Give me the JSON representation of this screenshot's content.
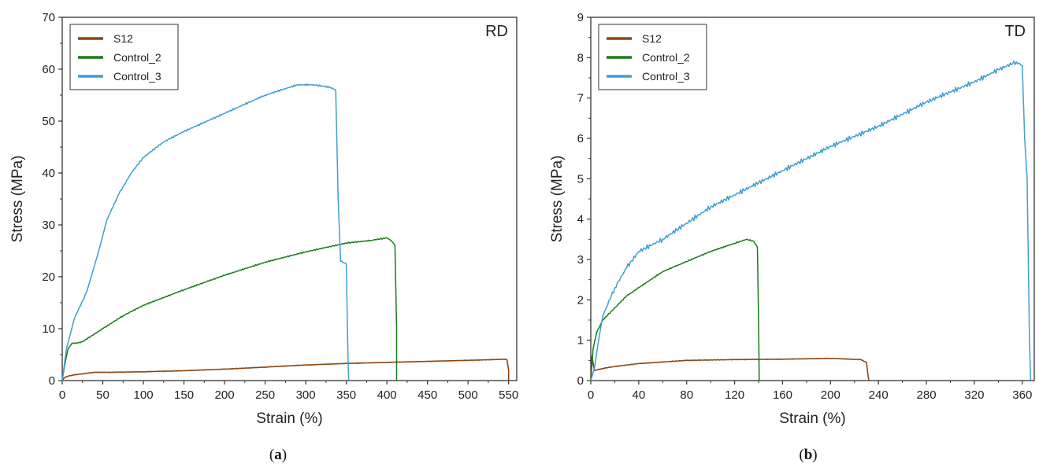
{
  "chart_data": [
    {
      "type": "line",
      "panel": "(a)",
      "caption": {
        "open": "(",
        "letter": "a",
        "close": ")"
      },
      "tag": "RD",
      "xlabel": "Strain (%)",
      "ylabel": "Stress (MPa)",
      "xlim": [
        0,
        560
      ],
      "ylim": [
        0,
        70
      ],
      "xticks": [
        0,
        50,
        100,
        150,
        200,
        250,
        300,
        350,
        400,
        450,
        500,
        550
      ],
      "yticks": [
        0,
        10,
        20,
        30,
        40,
        50,
        60,
        70
      ],
      "legend_position": "top-left",
      "series": [
        {
          "name": "S12",
          "color": "#8B4513",
          "x": [
            0,
            3,
            8,
            15,
            25,
            40,
            60,
            100,
            150,
            200,
            250,
            300,
            350,
            400,
            450,
            500,
            545,
            548,
            550,
            550
          ],
          "y": [
            0,
            0.6,
            0.9,
            1.1,
            1.3,
            1.6,
            1.6,
            1.7,
            1.9,
            2.2,
            2.6,
            3.0,
            3.3,
            3.5,
            3.7,
            3.9,
            4.1,
            4.0,
            2.0,
            0
          ]
        },
        {
          "name": "Control_2",
          "color": "#1a7a1a",
          "x": [
            0,
            3,
            7,
            12,
            18,
            25,
            35,
            50,
            75,
            100,
            150,
            200,
            250,
            300,
            350,
            380,
            400,
            405,
            408,
            410,
            412,
            412
          ],
          "y": [
            0,
            3,
            6,
            7.2,
            7.2,
            7.5,
            8.5,
            10,
            12.5,
            14.5,
            17.5,
            20.3,
            22.8,
            24.8,
            26.5,
            27.0,
            27.5,
            27.0,
            26.5,
            26.0,
            10,
            0
          ]
        },
        {
          "name": "Control_3",
          "color": "#3f9fd0",
          "x": [
            0,
            5,
            15,
            30,
            45,
            55,
            70,
            85,
            100,
            125,
            150,
            200,
            250,
            290,
            310,
            330,
            337,
            340,
            343,
            350,
            352,
            353
          ],
          "y": [
            0,
            6,
            12,
            17,
            25,
            31,
            36,
            40,
            43,
            46,
            48,
            51.5,
            55,
            57,
            57,
            56.5,
            56,
            35,
            23,
            22.5,
            5,
            0
          ]
        }
      ]
    },
    {
      "type": "line",
      "panel": "(b)",
      "caption": {
        "open": "(",
        "letter": "b",
        "close": ")"
      },
      "tag": "TD",
      "xlabel": "Strain (%)",
      "ylabel": "Stress (MPa)",
      "xlim": [
        0,
        370
      ],
      "ylim": [
        0,
        9
      ],
      "xticks": [
        0,
        40,
        80,
        120,
        160,
        200,
        240,
        280,
        320,
        360
      ],
      "yticks": [
        0,
        1,
        2,
        3,
        4,
        5,
        6,
        7,
        8,
        9
      ],
      "legend_position": "top-left",
      "series": [
        {
          "name": "S12",
          "color": "#8B4513",
          "x": [
            0,
            1,
            3,
            10,
            20,
            40,
            80,
            120,
            160,
            200,
            225,
            230,
            231,
            232
          ],
          "y": [
            0,
            0.6,
            0.25,
            0.3,
            0.35,
            0.42,
            0.5,
            0.52,
            0.53,
            0.55,
            0.52,
            0.45,
            0.2,
            0
          ]
        },
        {
          "name": "Control_2",
          "color": "#1a7a1a",
          "x": [
            0,
            2,
            5,
            10,
            20,
            30,
            40,
            60,
            80,
            100,
            120,
            130,
            136,
            139,
            140,
            140.5
          ],
          "y": [
            0,
            0.8,
            1.2,
            1.5,
            1.8,
            2.1,
            2.3,
            2.7,
            2.95,
            3.2,
            3.4,
            3.5,
            3.45,
            3.3,
            1.5,
            0
          ]
        },
        {
          "name": "Control_3",
          "color": "#3f9fd0",
          "x": [
            0,
            3,
            6,
            10,
            20,
            30,
            40,
            60,
            80,
            100,
            120,
            140,
            160,
            200,
            240,
            280,
            320,
            340,
            355,
            360,
            362,
            364,
            366,
            367
          ],
          "y": [
            0,
            0.3,
            0.9,
            1.6,
            2.3,
            2.8,
            3.2,
            3.5,
            3.9,
            4.3,
            4.6,
            4.9,
            5.2,
            5.8,
            6.3,
            6.9,
            7.4,
            7.7,
            7.9,
            7.8,
            6.0,
            5.0,
            1.0,
            0
          ]
        }
      ]
    }
  ]
}
